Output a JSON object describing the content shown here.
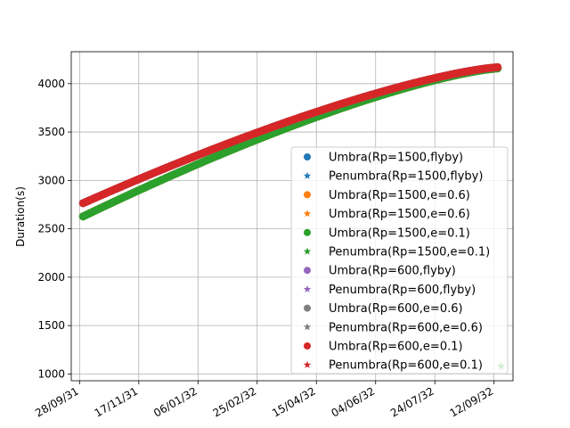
{
  "chart_data": {
    "type": "scatter",
    "title": "",
    "xlabel": "",
    "ylabel": "Duration(s)",
    "x_axis_type": "date",
    "xlim": [
      "2031-09-21",
      "2032-09-28"
    ],
    "ylim": [
      930,
      4330
    ],
    "grid": true,
    "legend_position": "lower-right",
    "x_ticks": [
      "28/09/31",
      "17/11/31",
      "06/01/32",
      "25/02/32",
      "15/04/32",
      "04/06/32",
      "24/07/32",
      "12/09/32"
    ],
    "y_ticks": [
      1000,
      1500,
      2000,
      2500,
      3000,
      3500,
      4000
    ],
    "x_start": "2031-10-01",
    "x_end": "2032-09-16",
    "series": [
      {
        "name": "Umbra(Rp=1500,flyby)",
        "marker": "circle",
        "color": "#1f77b4",
        "start": 2628,
        "end": 4158,
        "points": []
      },
      {
        "name": "Penumbra(Rp=1500,flyby)",
        "marker": "star",
        "color": "#1f77b4",
        "start": 2632,
        "end": 4160,
        "points": []
      },
      {
        "name": "Umbra(Rp=1500,e=0.6)",
        "marker": "circle",
        "color": "#ff7f0e",
        "start": 2628,
        "end": 4158,
        "points": []
      },
      {
        "name": "Umbra(Rp=1500,e=0.6)",
        "marker": "star",
        "color": "#ff7f0e",
        "start": 2632,
        "end": 4160,
        "points": []
      },
      {
        "name": "Umbra(Rp=1500,e=0.1)",
        "marker": "circle",
        "color": "#2ca02c",
        "start": 2628,
        "end": 4158,
        "points": []
      },
      {
        "name": "Penumbra(Rp=1500,e=0.1)",
        "marker": "star",
        "color": "#2ca02c",
        "start": 2632,
        "end": 4160,
        "points": [
          {
            "x": "2032-09-18",
            "y": 1080
          }
        ]
      },
      {
        "name": "Umbra(Rp=600,flyby)",
        "marker": "circle",
        "color": "#9467bd",
        "start": 2765,
        "end": 4170,
        "points": []
      },
      {
        "name": "Penumbra(Rp=600,flyby)",
        "marker": "star",
        "color": "#9467bd",
        "start": 2768,
        "end": 4172,
        "points": []
      },
      {
        "name": "Umbra(Rp=600,e=0.6)",
        "marker": "circle",
        "color": "#7f7f7f",
        "start": 2765,
        "end": 4170,
        "points": []
      },
      {
        "name": "Penumbra(Rp=600,e=0.6)",
        "marker": "star",
        "color": "#7f7f7f",
        "start": 2768,
        "end": 4172,
        "points": []
      },
      {
        "name": "Umbra(Rp=600,e=0.1)",
        "marker": "circle",
        "color": "#d62728",
        "start": 2765,
        "end": 4170,
        "points": []
      },
      {
        "name": "Penumbra(Rp=600,e=0.1)",
        "marker": "star",
        "color": "#d62728",
        "start": 2768,
        "end": 4172,
        "points": []
      }
    ]
  }
}
